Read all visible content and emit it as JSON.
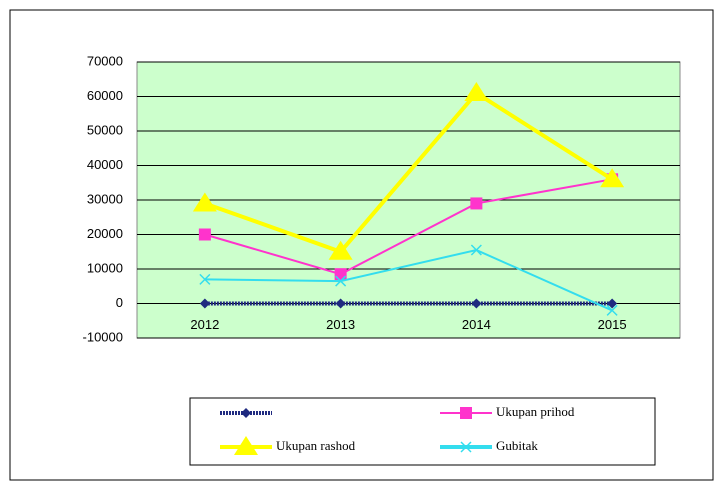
{
  "chart_data": {
    "type": "line",
    "categories": [
      "2012",
      "2013",
      "2014",
      "2015"
    ],
    "series": [
      {
        "color": "#1f2a80",
        "marker": "diamond",
        "values": [
          0,
          0,
          0,
          0
        ]
      },
      {
        "name": "Ukupan prihod",
        "color": "#ff33cc",
        "marker": "square",
        "values": [
          20000,
          8500,
          29000,
          36000
        ]
      },
      {
        "name": "Ukupan rashod",
        "color": "#ffff00",
        "marker": "triangle",
        "values": [
          29000,
          15000,
          61000,
          36000
        ]
      },
      {
        "name": "Gubitak",
        "color": "#33ddee",
        "marker": "x",
        "values": [
          7000,
          6500,
          15500,
          -2000
        ]
      }
    ],
    "ylim": [
      -10000,
      70000
    ],
    "yticks": [
      -10000,
      0,
      10000,
      20000,
      30000,
      40000,
      50000,
      60000,
      70000
    ],
    "grid": true,
    "plot_background": "#ccffcc",
    "legend": "bottom"
  }
}
